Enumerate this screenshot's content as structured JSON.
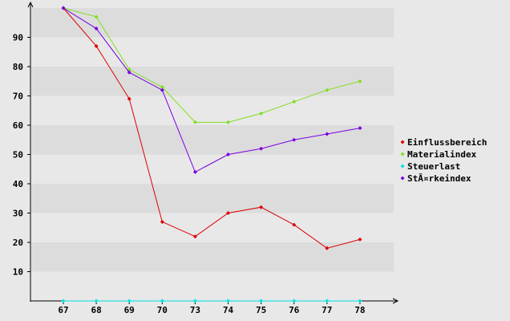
{
  "chart_data": {
    "type": "line",
    "categories": [
      "67",
      "68",
      "69",
      "70",
      "73",
      "74",
      "75",
      "76",
      "77",
      "78"
    ],
    "series": [
      {
        "name": "Einflussbereich",
        "color": "#dd0000",
        "values": [
          100,
          87,
          69,
          27,
          22,
          30,
          32,
          26,
          18,
          21
        ]
      },
      {
        "name": "Materialindex",
        "color": "#80e020",
        "values": [
          100,
          97,
          79,
          73,
          61,
          61,
          64,
          68,
          72,
          75
        ]
      },
      {
        "name": "Steuerlast",
        "color": "#00e0e0",
        "values": [
          0,
          0,
          0,
          0,
          0,
          0,
          0,
          0,
          0,
          0
        ]
      },
      {
        "name": "StÃ¤rkeindex",
        "color": "#7a00e0",
        "values": [
          100,
          93,
          78,
          72,
          44,
          50,
          52,
          55,
          57,
          59
        ]
      }
    ],
    "yticks": [
      10,
      20,
      30,
      40,
      50,
      60,
      70,
      80,
      90
    ],
    "ylim": [
      0,
      100
    ],
    "title": "",
    "xlabel": "",
    "ylabel": "",
    "grid": "horizontal bands",
    "legend_position": "right",
    "colors": {
      "background": "#e8e8e8",
      "band_light": "#e8e8e8",
      "band_dark": "#dcdcdc",
      "axis": "#000000"
    }
  }
}
